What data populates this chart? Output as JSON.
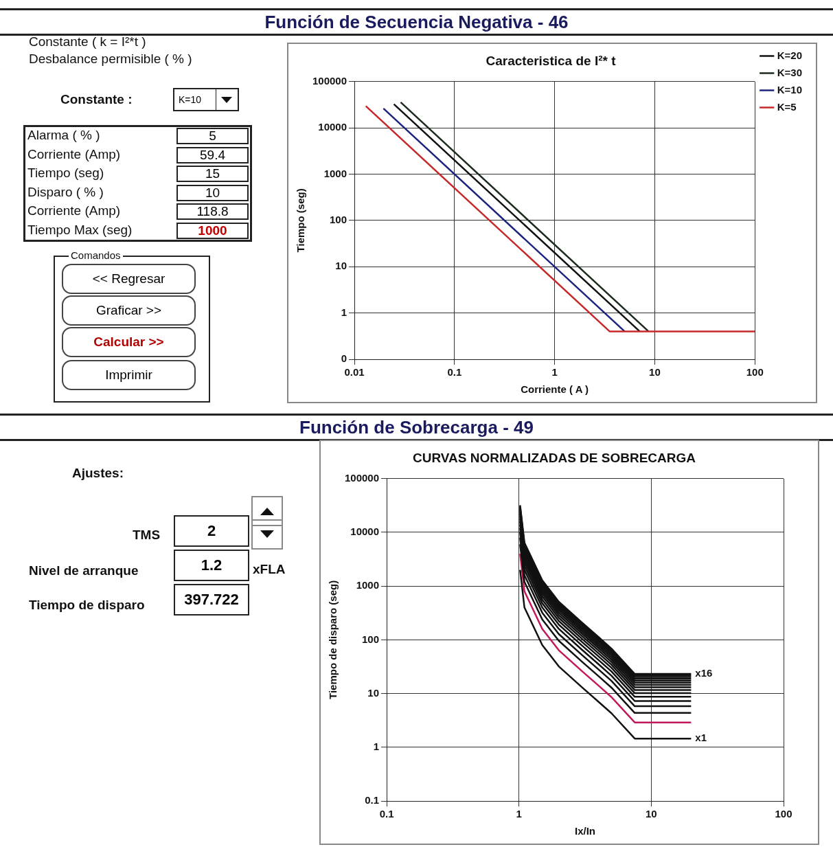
{
  "chart_data": [
    {
      "type": "other",
      "title": "Función de Secuencia Negativa - 46",
      "annotations": [
        "Constante ( k = I²*t )",
        "Desbalance permisible ( % )",
        "Constante :",
        "K=10",
        "Alarma ( % )",
        "5",
        "Corriente (Amp)",
        "59.4",
        "Tiempo (seg)",
        "15",
        "Disparo ( % )",
        "10",
        "Corriente (Amp)",
        "118.8",
        "Tiempo Max (seg)",
        "1000",
        "Comandos",
        "<< Regresar",
        "Graficar >>",
        "Calcular >>",
        "Imprimir"
      ]
    },
    {
      "type": "line",
      "title": "Caracteristica de I²* t",
      "xlabel": "Corriente ( A )",
      "ylabel": "Tiempo (seg)",
      "log": "xy",
      "grid": true,
      "legend": "top right",
      "marker": "none",
      "line_style": "solid",
      "xlim": [
        0.01,
        100
      ],
      "xticks": [
        0.01,
        0.1,
        1,
        10,
        100
      ],
      "ylim": [
        0.1,
        100000
      ],
      "yticks": [
        {
          "value": 0.1,
          "label": "0"
        },
        1,
        10,
        100,
        1000,
        10000,
        100000
      ],
      "series": [
        {
          "name": "K=20",
          "color": "#111111",
          "x": [
            0.0248,
            7.07
          ],
          "values": [
            32500,
            0.4
          ]
        },
        {
          "name": "K=30",
          "color": "#1c2b1c",
          "x": [
            0.029,
            8.66
          ],
          "values": [
            35700,
            0.4
          ]
        },
        {
          "name": "K=10",
          "color": "#1a237e",
          "x": [
            0.0195,
            5
          ],
          "values": [
            26300,
            0.4
          ]
        },
        {
          "name": "K=5",
          "color": "#c62828",
          "x": [
            0.013,
            3.54,
            100
          ],
          "values": [
            29600,
            0.4,
            0.4
          ]
        }
      ]
    },
    {
      "type": "other",
      "title": "Función de Sobrecarga - 49",
      "annotations": [
        "Ajustes:",
        "TMS",
        "2",
        "Nivel de arranque",
        "1.2",
        "xFLA",
        "Tiempo de disparo",
        "397.722"
      ]
    },
    {
      "type": "line",
      "title": "CURVAS NORMALIZADAS DE SOBRECARGA",
      "xlabel": "Ix/In",
      "ylabel": "Tiempo de disparo (seg)",
      "log": "xy",
      "grid": true,
      "marker": "none",
      "line_style": "solid",
      "xlim": [
        0.1,
        100
      ],
      "xticks": [
        0.1,
        1,
        10,
        100
      ],
      "ylim": [
        0.1,
        100000
      ],
      "yticks": [
        0.1,
        1,
        10,
        100,
        1000,
        10000,
        100000
      ],
      "x": [
        1.02,
        1.1,
        1.5,
        2,
        3,
        4,
        5,
        7.5,
        20
      ],
      "series": [
        {
          "name": "x1",
          "color": "#111111",
          "values": [
            2000,
            400,
            80,
            32,
            13,
            7,
            4.3,
            1.45,
            1.45
          ]
        },
        {
          "color": "#c2185b",
          "values": [
            4000,
            800,
            160,
            64,
            26,
            14,
            8.6,
            2.9,
            2.9
          ]
        },
        {
          "color": "#111111",
          "values": [
            6000,
            1200,
            240,
            96,
            39,
            21,
            12.9,
            4.35,
            4.35
          ]
        },
        {
          "color": "#111111",
          "values": [
            8000,
            1600,
            320,
            128,
            52,
            28,
            17.2,
            5.8,
            5.8
          ]
        },
        {
          "color": "#111111",
          "values": [
            10000,
            2000,
            400,
            160,
            65,
            35,
            21.5,
            7.25,
            7.25
          ]
        },
        {
          "color": "#111111",
          "values": [
            12000,
            2400,
            480,
            192,
            78,
            42,
            25.8,
            8.7,
            8.7
          ]
        },
        {
          "color": "#111111",
          "values": [
            14000,
            2800,
            560,
            224,
            91,
            49,
            30.1,
            10.15,
            10.15
          ]
        },
        {
          "color": "#111111",
          "values": [
            16000,
            3200,
            640,
            256,
            104,
            56,
            34.4,
            11.6,
            11.6
          ]
        },
        {
          "color": "#111111",
          "values": [
            18000,
            3600,
            720,
            288,
            117,
            63,
            38.7,
            13.05,
            13.05
          ]
        },
        {
          "color": "#111111",
          "values": [
            20000,
            4000,
            800,
            320,
            130,
            70,
            43,
            14.5,
            14.5
          ]
        },
        {
          "color": "#111111",
          "values": [
            22000,
            4400,
            880,
            352,
            143,
            77,
            47.3,
            15.95,
            15.95
          ]
        },
        {
          "color": "#111111",
          "values": [
            24000,
            4800,
            960,
            384,
            156,
            84,
            51.6,
            17.4,
            17.4
          ]
        },
        {
          "color": "#111111",
          "values": [
            26000,
            5200,
            1040,
            416,
            169,
            91,
            55.9,
            18.85,
            18.85
          ]
        },
        {
          "color": "#111111",
          "values": [
            28000,
            5600,
            1120,
            448,
            182,
            98,
            60.2,
            20.3,
            20.3
          ]
        },
        {
          "color": "#111111",
          "values": [
            30000,
            6000,
            1200,
            480,
            195,
            105,
            64.5,
            21.75,
            21.75
          ]
        },
        {
          "name": "x16",
          "color": "#111111",
          "values": [
            32000,
            6400,
            1280,
            512,
            208,
            112,
            68.8,
            23.2,
            23.2
          ]
        }
      ]
    }
  ]
}
